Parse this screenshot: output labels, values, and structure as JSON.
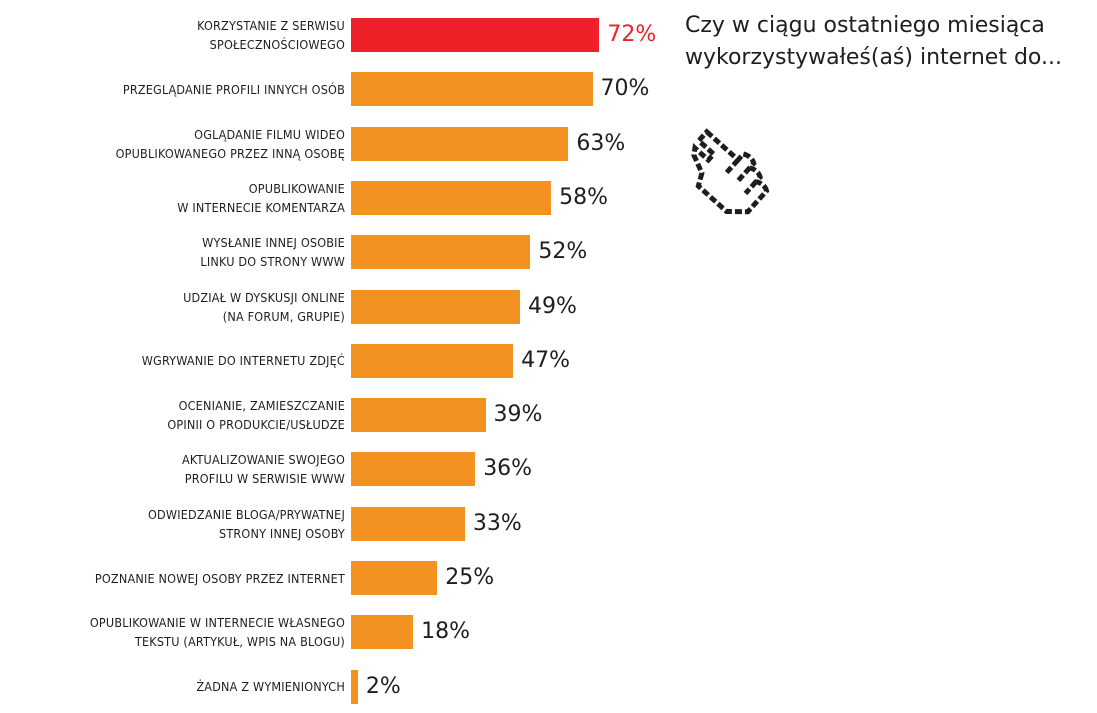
{
  "chart_data": {
    "type": "bar",
    "orientation": "horizontal",
    "title": "Czy w ciągu ostatniego miesiąca wykorzystywałeś(aś) internet do...",
    "unit": "%",
    "categories": [
      [
        "KORZYSTANIE Z SERWISU",
        "SPOŁECZNOŚCIOWEGO"
      ],
      [
        "PRZEGLĄDANIE PROFILI INNYCH OSÓB"
      ],
      [
        "OGLĄDANIE FILMU WIDEO",
        "OPUBLIKOWANEGO PRZEZ INNĄ OSOBĘ"
      ],
      [
        "OPUBLIKOWANIE",
        "W INTERNECIE KOMENTARZA"
      ],
      [
        "WYSŁANIE INNEJ OSOBIE",
        "LINKU DO STRONY WWW"
      ],
      [
        "UDZIAŁ W DYSKUSJI ONLINE",
        "(NA FORUM, GRUPIE)"
      ],
      [
        "WGRYWANIE DO INTERNETU ZDJĘĆ"
      ],
      [
        "OCENIANIE, ZAMIESZCZANIE",
        "OPINII O PRODUKCIE/USŁUDZE"
      ],
      [
        "AKTUALIZOWANIE SWOJEGO",
        "PROFILU W SERWISIE WWW"
      ],
      [
        "ODWIEDZANIE BLOGA/PRYWATNEJ",
        "STRONY INNEJ OSOBY"
      ],
      [
        "POZNANIE NOWEJ OSOBY PRZEZ INTERNET"
      ],
      [
        "OPUBLIKOWANIE W INTERNECIE WŁASNEGO",
        "TEKSTU (ARTYKUŁ, WPIS NA BLOGU)"
      ],
      [
        "ŻADNA Z WYMIENIONYCH"
      ]
    ],
    "values": [
      72,
      70,
      63,
      58,
      52,
      49,
      47,
      39,
      36,
      33,
      25,
      18,
      2
    ],
    "value_labels": [
      "72%",
      "70%",
      "63%",
      "58%",
      "52%",
      "49%",
      "47%",
      "39%",
      "36%",
      "33%",
      "25%",
      "18%",
      "2%"
    ],
    "highlight_index": 0,
    "xlim": [
      0,
      100
    ],
    "grid": false,
    "legend": "none"
  },
  "colors": {
    "bar": "#f39220",
    "highlight": "#ee2028",
    "text": "#1e1e1e"
  },
  "decoration": {
    "icon": "pointing-hand-cursor-icon"
  }
}
